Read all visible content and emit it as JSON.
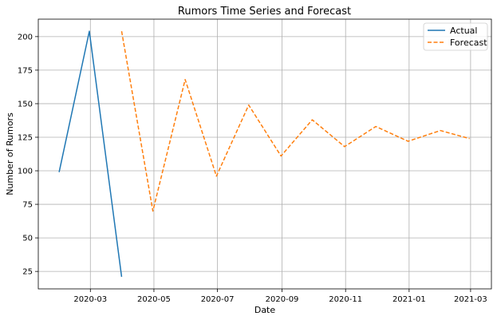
{
  "chart_data": {
    "type": "line",
    "title": "Rumors Time Series and Forecast",
    "xlabel": "Date",
    "ylabel": "Number of Rumors",
    "x_ticks": [
      "2020-03-01",
      "2020-05-01",
      "2020-07-01",
      "2020-09-01",
      "2020-11-01",
      "2021-01-01",
      "2021-03-01"
    ],
    "x_tick_labels": [
      "2020-03",
      "2020-05",
      "2020-07",
      "2020-09",
      "2020-11",
      "2021-01",
      "2021-03"
    ],
    "xlim": [
      "2020-01-11",
      "2021-03-21"
    ],
    "y_ticks": [
      25,
      50,
      75,
      100,
      125,
      150,
      175,
      200
    ],
    "ylim": [
      12,
      213
    ],
    "grid": true,
    "legend_position": "top-right",
    "series": [
      {
        "name": "Actual",
        "color": "#1f77b4",
        "linestyle": "solid",
        "x": [
          "2020-01-31",
          "2020-02-29",
          "2020-03-31"
        ],
        "y": [
          99,
          204,
          21
        ]
      },
      {
        "name": "Forecast",
        "color": "#ff7f0e",
        "linestyle": "dashed",
        "x": [
          "2020-03-31",
          "2020-04-30",
          "2020-05-31",
          "2020-06-30",
          "2020-07-31",
          "2020-08-31",
          "2020-09-30",
          "2020-10-31",
          "2020-11-30",
          "2020-12-31",
          "2021-01-31",
          "2021-02-28"
        ],
        "y": [
          204,
          70,
          168,
          96,
          149,
          111,
          138,
          118,
          133,
          122,
          130,
          124
        ]
      }
    ]
  }
}
